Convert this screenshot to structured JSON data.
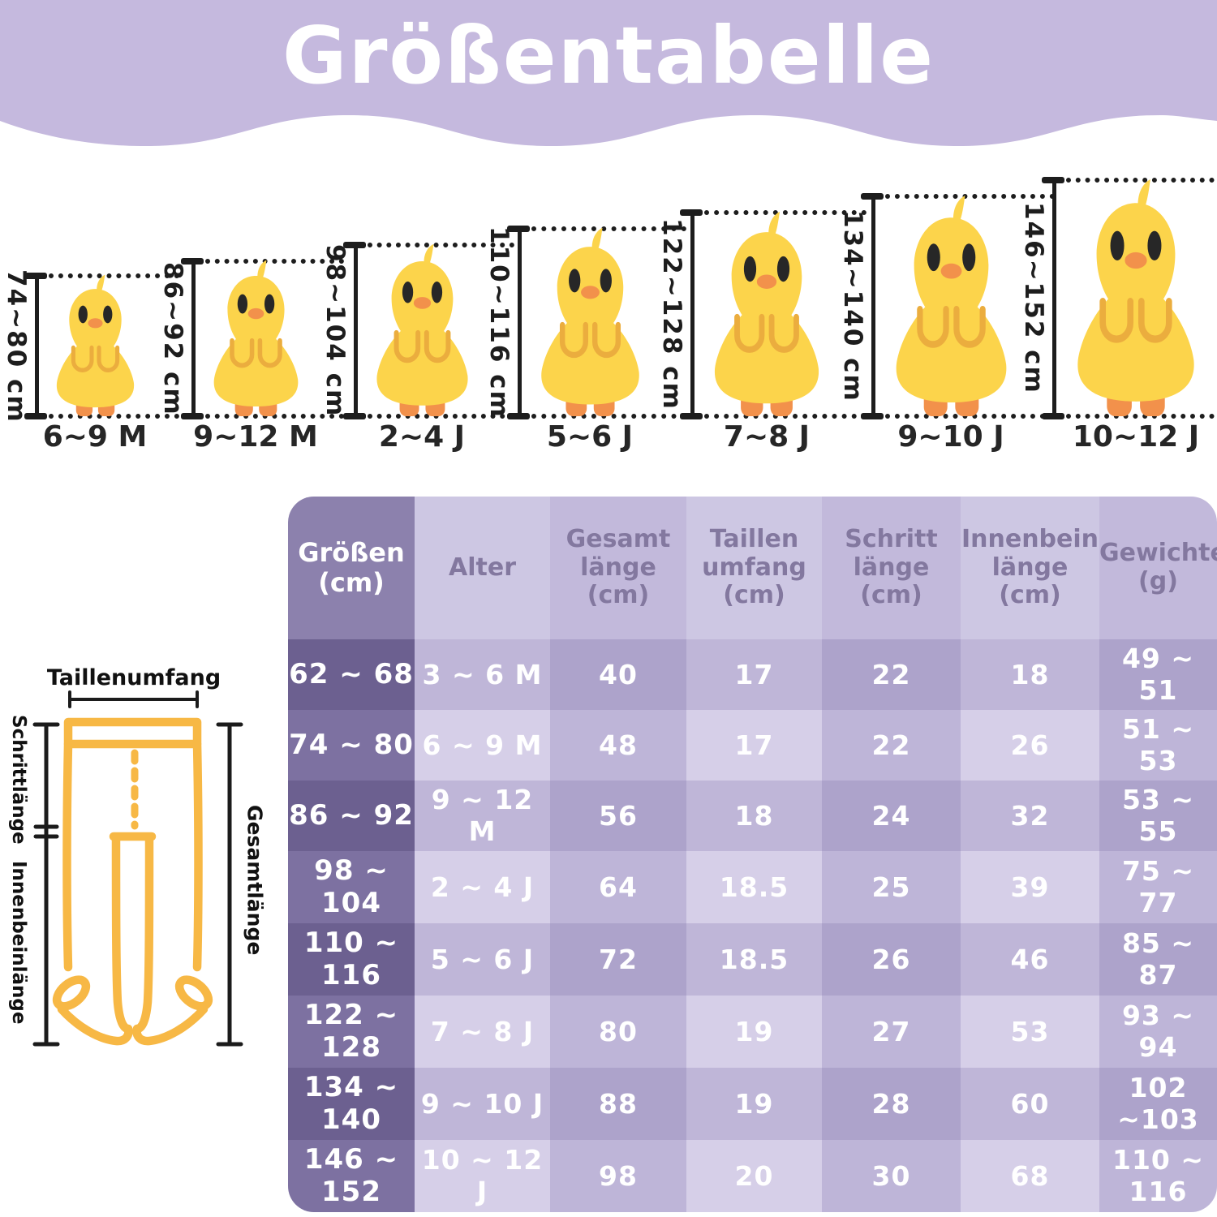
{
  "title": "Größentabelle",
  "diagram": {
    "waist_label": "Taillenumfang",
    "crotch_label": "Schrittlänge",
    "inseam_label": "Innenbeinlänge",
    "total_label": "Gesamtlänge"
  },
  "table": {
    "header_lines": [
      [
        "Größen",
        "(cm)"
      ],
      [
        "Alter"
      ],
      [
        "Gesamt",
        "länge",
        "(cm)"
      ],
      [
        "Taillen",
        "umfang",
        "(cm)"
      ],
      [
        "Schritt",
        "länge",
        "(cm)"
      ],
      [
        "Innenbein",
        "länge",
        "(cm)"
      ],
      [
        "Gewichte",
        "(g)"
      ]
    ]
  },
  "chart_data": {
    "type": "table",
    "title": "Größentabelle",
    "columns": [
      "Größen (cm)",
      "Alter",
      "Gesamtlänge (cm)",
      "Taillenumfang (cm)",
      "Schrittlänge (cm)",
      "Innenbeinlänge (cm)",
      "Gewichte (g)"
    ],
    "rows": [
      [
        "62 ~ 68",
        "3 ~ 6 M",
        "40",
        "17",
        "22",
        "18",
        "49 ~ 51"
      ],
      [
        "74 ~ 80",
        "6 ~ 9 M",
        "48",
        "17",
        "22",
        "26",
        "51 ~ 53"
      ],
      [
        "86 ~ 92",
        "9 ~ 12 M",
        "56",
        "18",
        "24",
        "32",
        "53 ~ 55"
      ],
      [
        "98 ~ 104",
        "2 ~ 4 J",
        "64",
        "18.5",
        "25",
        "39",
        "75 ~ 77"
      ],
      [
        "110 ~ 116",
        "5 ~ 6 J",
        "72",
        "18.5",
        "26",
        "46",
        "85 ~ 87"
      ],
      [
        "122 ~ 128",
        "7 ~ 8 J",
        "80",
        "19",
        "27",
        "53",
        "93 ~ 94"
      ],
      [
        "134 ~ 140",
        "9 ~ 10 J",
        "88",
        "19",
        "28",
        "60",
        "102 ~103"
      ],
      [
        "146 ~ 152",
        "10 ~ 12 J",
        "98",
        "20",
        "30",
        "68",
        "110 ~ 116"
      ]
    ],
    "height_guide": [
      {
        "height_range": "74~80 cm",
        "age": "6~9 M"
      },
      {
        "height_range": "86~92 cm",
        "age": "9~12 M"
      },
      {
        "height_range": "98~104 cm",
        "age": "2~4 J"
      },
      {
        "height_range": "110~116 cm",
        "age": "5~6 J"
      },
      {
        "height_range": "122~128 cm",
        "age": "7~8 J"
      },
      {
        "height_range": "134~140 cm",
        "age": "9~10 J"
      },
      {
        "height_range": "146~152 cm",
        "age": "10~12 J"
      }
    ]
  },
  "colors": {
    "banner_lavender": "#C5B9DE",
    "title_text": "#FFFFFF",
    "chick_body_yellow": "#FCD44B",
    "chick_accent_orange": "#F2914B",
    "chick_wing_gold": "#EBAD3E",
    "tights_outline_gold": "#F7B845",
    "ruler_black": "#1D1D1D",
    "table_header_size_col": "#8C81AD",
    "table_size_col_dark": "#6C6090",
    "table_size_col_light": "#7D71A1",
    "table_cell_dark": "#ADA3CB",
    "table_cell_medium": "#BFB6D8",
    "table_cell_light": "#D6CFE8",
    "table_header_text": "#83789F",
    "cell_text": "#FFFFFF"
  }
}
